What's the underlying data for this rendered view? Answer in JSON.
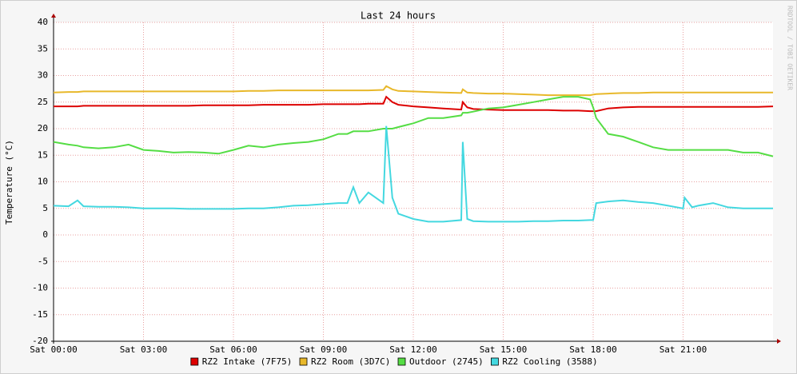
{
  "chart_data": {
    "type": "line",
    "title": "Last 24 hours",
    "y_label": "Temperature (°C)",
    "watermark": "RRDTOOL / TOBI OETIKER",
    "x": [
      0,
      0.5,
      0.8,
      1,
      1.5,
      2,
      2.5,
      3,
      3.5,
      4,
      4.5,
      5,
      5.5,
      6,
      6.5,
      7,
      7.5,
      8,
      8.5,
      9,
      9.5,
      9.8,
      10,
      10.2,
      10.5,
      11,
      11.1,
      11.3,
      11.5,
      12,
      12.5,
      13,
      13.6,
      13.65,
      13.8,
      14,
      14.5,
      15,
      15.5,
      16,
      16.5,
      17,
      17.5,
      17.9,
      18,
      18.1,
      18.5,
      19,
      19.5,
      20,
      20.5,
      21,
      21.05,
      21.3,
      21.5,
      22,
      22.5,
      23,
      23.5,
      24
    ],
    "xlim": [
      0,
      24
    ],
    "xticks": [
      {
        "value": 0,
        "label": "Sat 00:00"
      },
      {
        "value": 3,
        "label": "Sat 03:00"
      },
      {
        "value": 6,
        "label": "Sat 06:00"
      },
      {
        "value": 9,
        "label": "Sat 09:00"
      },
      {
        "value": 12,
        "label": "Sat 12:00"
      },
      {
        "value": 15,
        "label": "Sat 15:00"
      },
      {
        "value": 18,
        "label": "Sat 18:00"
      },
      {
        "value": 21,
        "label": "Sat 21:00"
      }
    ],
    "ylim": [
      -20,
      40
    ],
    "yticks": [
      -20,
      -15,
      -10,
      -5,
      0,
      5,
      10,
      15,
      20,
      25,
      30,
      35,
      40
    ],
    "grid": true,
    "series": [
      {
        "name": "RZ2 Intake (7F75)",
        "color": "#dd0000",
        "values": [
          24.2,
          24.2,
          24.2,
          24.3,
          24.3,
          24.3,
          24.3,
          24.3,
          24.3,
          24.3,
          24.3,
          24.4,
          24.4,
          24.4,
          24.4,
          24.5,
          24.5,
          24.5,
          24.5,
          24.6,
          24.6,
          24.6,
          24.6,
          24.6,
          24.7,
          24.7,
          26,
          25,
          24.5,
          24.2,
          24,
          23.8,
          23.6,
          25,
          24,
          23.7,
          23.6,
          23.5,
          23.5,
          23.5,
          23.5,
          23.4,
          23.4,
          23.3,
          23.3,
          23.3,
          23.8,
          24,
          24.1,
          24.1,
          24.1,
          24.1,
          24.1,
          24.1,
          24.1,
          24.1,
          24.1,
          24.1,
          24.1,
          24.2
        ]
      },
      {
        "name": "RZ2 Room (3D7C)",
        "color": "#e8b82a",
        "values": [
          26.8,
          26.9,
          26.9,
          27,
          27,
          27,
          27,
          27,
          27,
          27,
          27,
          27,
          27,
          27,
          27.1,
          27.1,
          27.2,
          27.2,
          27.2,
          27.2,
          27.2,
          27.2,
          27.2,
          27.2,
          27.2,
          27.3,
          28,
          27.4,
          27.1,
          27,
          26.9,
          26.8,
          26.7,
          27.4,
          26.8,
          26.7,
          26.6,
          26.6,
          26.5,
          26.4,
          26.3,
          26.3,
          26.3,
          26.3,
          26.4,
          26.5,
          26.6,
          26.7,
          26.7,
          26.8,
          26.8,
          26.8,
          26.8,
          26.8,
          26.8,
          26.8,
          26.8,
          26.8,
          26.8,
          26.8
        ]
      },
      {
        "name": "Outdoor (2745)",
        "color": "#55dd44",
        "values": [
          17.5,
          17,
          16.8,
          16.5,
          16.3,
          16.5,
          17,
          16,
          15.8,
          15.5,
          15.6,
          15.5,
          15.3,
          16,
          16.8,
          16.5,
          17,
          17.3,
          17.5,
          18,
          19,
          19,
          19.5,
          19.5,
          19.5,
          20,
          20,
          20,
          20.3,
          21,
          22,
          22,
          22.5,
          23,
          23,
          23.2,
          23.8,
          24,
          24.5,
          25,
          25.5,
          26,
          26,
          25.5,
          24,
          22,
          19,
          18.5,
          17.5,
          16.5,
          16,
          16,
          16,
          16,
          16,
          16,
          16,
          15.5,
          15.5,
          14.8
        ]
      },
      {
        "name": "RZ2 Cooling (3588)",
        "color": "#44d8e0",
        "values": [
          5.5,
          5.4,
          6.5,
          5.4,
          5.3,
          5.3,
          5.2,
          5,
          5,
          5,
          4.9,
          4.9,
          4.9,
          4.9,
          5,
          5,
          5.2,
          5.5,
          5.6,
          5.8,
          6,
          6,
          9,
          6,
          8,
          6,
          20.5,
          7,
          4,
          3,
          2.5,
          2.5,
          2.8,
          17.5,
          3,
          2.6,
          2.5,
          2.5,
          2.5,
          2.6,
          2.6,
          2.7,
          2.7,
          2.8,
          2.8,
          6,
          6.3,
          6.5,
          6.2,
          6,
          5.5,
          5,
          7,
          5.2,
          5.5,
          6,
          5.2,
          5,
          5,
          5
        ]
      }
    ]
  }
}
